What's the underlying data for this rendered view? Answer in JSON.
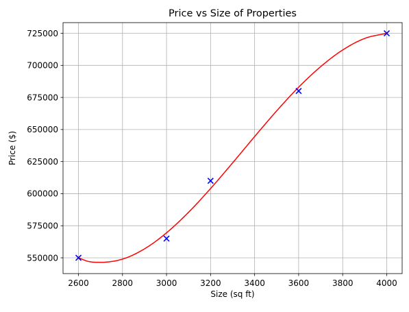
{
  "chart_data": {
    "type": "scatter",
    "title": "Price vs Size of Properties",
    "xlabel": "Size (sq ft)",
    "ylabel": "Price ($)",
    "xlim": [
      2530,
      4070
    ],
    "ylim": [
      537700,
      733300
    ],
    "xticks": [
      2600,
      2800,
      3000,
      3200,
      3400,
      3600,
      3800,
      4000
    ],
    "yticks": [
      550000,
      575000,
      600000,
      625000,
      650000,
      675000,
      700000,
      725000
    ],
    "grid": true,
    "series": [
      {
        "kind": "scatter",
        "marker": "x",
        "color": "#0000ff",
        "x": [
          2600,
          3000,
          3200,
          3600,
          4000
        ],
        "y": [
          550000,
          565000,
          610000,
          680000,
          725000
        ]
      },
      {
        "kind": "line",
        "color": "#ff0000",
        "x": [
          2600,
          2650,
          2700,
          2800,
          2900,
          3000,
          3100,
          3200,
          3300,
          3400,
          3500,
          3600,
          3700,
          3800,
          3900,
          4000
        ],
        "y": [
          550000,
          547000,
          546500,
          549000,
          557000,
          569500,
          585500,
          604000,
          624000,
          644500,
          664500,
          683000,
          699000,
          712000,
          721000,
          725000
        ]
      }
    ]
  }
}
